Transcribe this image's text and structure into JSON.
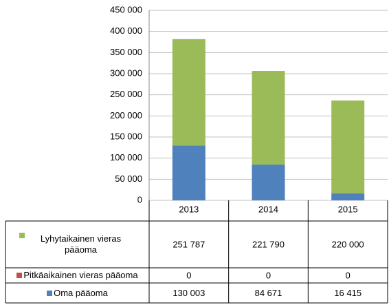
{
  "chart_data": {
    "type": "bar",
    "stacked": true,
    "categories": [
      "2013",
      "2014",
      "2015"
    ],
    "series": [
      {
        "name": "Oma pääoma",
        "color": "#4f81bd",
        "values": [
          130003,
          84671,
          16415
        ],
        "value_labels": [
          "130 003",
          "84 671",
          "16 415"
        ]
      },
      {
        "name": "Pitkäaikainen vieras pääoma",
        "color": "#c0504d",
        "values": [
          0,
          0,
          0
        ],
        "value_labels": [
          "0",
          "0",
          "0"
        ]
      },
      {
        "name": "Lyhytaikainen vieras pääoma",
        "color": "#9bbb59",
        "values": [
          251787,
          221790,
          220000
        ],
        "value_labels": [
          "251 787",
          "221 790",
          "220 000"
        ]
      }
    ],
    "ylim": [
      0,
      450000
    ],
    "yticks": [
      0,
      {
        "value": 50000,
        "label": "50 000"
      },
      {
        "value": 100000,
        "label": "100 000"
      },
      {
        "value": 150000,
        "label": "150 000"
      },
      {
        "value": 200000,
        "label": "200 000"
      },
      {
        "value": 250000,
        "label": "250 000"
      },
      {
        "value": 300000,
        "label": "300 000"
      },
      {
        "value": 350000,
        "label": "350 000"
      },
      {
        "value": 400000,
        "label": "400 000"
      },
      {
        "value": 450000,
        "label": "450 000"
      }
    ],
    "grid": true,
    "data_table": true
  }
}
